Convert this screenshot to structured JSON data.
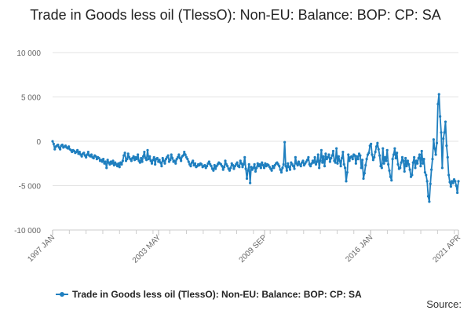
{
  "chart_data": {
    "type": "line",
    "title": "Trade in Goods less oil (TlessO): Non-EU: Balance: BOP: CP: SA",
    "xlabel": "",
    "ylabel": "",
    "ylim": [
      -10000,
      10000
    ],
    "yticks": [
      10000,
      5000,
      0,
      -5000,
      -10000
    ],
    "ytick_labels": [
      "10 000",
      "5 000",
      "0",
      "-5 000",
      "-10 000"
    ],
    "xticks": [
      "1997 JAN",
      "2003 MAY",
      "2009 SEP",
      "2016 JAN",
      "2021 APR"
    ],
    "x_range": [
      "1997-01",
      "2021-04"
    ],
    "frequency": "monthly",
    "grid": true,
    "legend_position": "bottom",
    "series": [
      {
        "name": "Trade in Goods less oil (TlessO): Non-EU: Balance: BOP: CP: SA",
        "color": "#1f7fbf",
        "values": [
          0,
          -300,
          -900,
          -600,
          -500,
          -400,
          -700,
          -900,
          -500,
          -400,
          -700,
          -600,
          -500,
          -700,
          -800,
          -600,
          -900,
          -1000,
          -1200,
          -1000,
          -1100,
          -1300,
          -1200,
          -1000,
          -1400,
          -1200,
          -1500,
          -1700,
          -1400,
          -1300,
          -1600,
          -1800,
          -1500,
          -1200,
          -1600,
          -1700,
          -1500,
          -1800,
          -1900,
          -1600,
          -1700,
          -2000,
          -1800,
          -1900,
          -2200,
          -2100,
          -2300,
          -2000,
          -2500,
          -2300,
          -3000,
          -2100,
          -2400,
          -2600,
          -2300,
          -2500,
          -2200,
          -2700,
          -2400,
          -2600,
          -2800,
          -2500,
          -2900,
          -2400,
          -2600,
          -2200,
          -1600,
          -1300,
          -2200,
          -2000,
          -1400,
          -1800,
          -2000,
          -2200,
          -1900,
          -1700,
          -2100,
          -1800,
          -2000,
          -1500,
          -2200,
          -2400,
          -1900,
          -2300,
          -1700,
          -1200,
          -1900,
          -2100,
          -1000,
          -2000,
          -1700,
          -2200,
          -2500,
          -2100,
          -1800,
          -2600,
          -2000,
          -1900,
          -2300,
          -2100,
          -2400,
          -2800,
          -1900,
          -2200,
          -2500,
          -2000,
          -1800,
          -1600,
          -2300,
          -2100,
          -1500,
          -1900,
          -2300,
          -2200,
          -2500,
          -2000,
          -1800,
          -1500,
          -1900,
          -2200,
          -1700,
          -1600,
          -1200,
          -1500,
          -1800,
          -2000,
          -2300,
          -2600,
          -2800,
          -2400,
          -2200,
          -2700,
          -2500,
          -2900,
          -2800,
          -2600,
          -2700,
          -2500,
          -2600,
          -2900,
          -2800,
          -2700,
          -3000,
          -2800,
          -2500,
          -2300,
          -2600,
          -2800,
          -3100,
          -3300,
          -2700,
          -3100,
          -2800,
          -2600,
          -2400,
          -2500,
          -2600,
          -2800,
          -3200,
          -2900,
          -2200,
          -2600,
          -2800,
          -3100,
          -3300,
          -3000,
          -2500,
          -2700,
          -3100,
          -2800,
          -2600,
          -2400,
          -2800,
          -2900,
          -2200,
          -2500,
          -2900,
          -2600,
          -1800,
          -3100,
          -4200,
          -3300,
          -2600,
          -4700,
          -2900,
          -3200,
          -3000,
          -2600,
          -3400,
          -3000,
          -2500,
          -2800,
          -2600,
          -3000,
          -2400,
          -2700,
          -3000,
          -2500,
          -2800,
          -2600,
          -2700,
          -2900,
          -3100,
          -3300,
          -2800,
          -3000,
          -2700,
          -2500,
          -2400,
          -2600,
          -2800,
          -3200,
          -3500,
          -3000,
          -2600,
          -100,
          -2800,
          -3300,
          -2500,
          -2900,
          -3200,
          -2400,
          -2600,
          -2800,
          -3100,
          -1800,
          -2500,
          -2700,
          -2300,
          -2600,
          -2800,
          -2400,
          -2200,
          -2700,
          -2500,
          -2300,
          -2100,
          -1800,
          -2600,
          -2800,
          -2500,
          -2200,
          -2400,
          -1800,
          -2600,
          -2300,
          -1500,
          -3000,
          -2200,
          -1000,
          -2400,
          -1700,
          -2800,
          -1400,
          -2000,
          -1800,
          -1500,
          -2300,
          -1900,
          -1600,
          -1100,
          -2200,
          -2400,
          -800,
          -2500,
          -1700,
          -2200,
          -2800,
          -1900,
          -1200,
          -2600,
          -3000,
          -4500,
          -3500,
          -1500,
          -2200,
          -1800,
          -1700,
          -2000,
          -1500,
          -1600,
          -2500,
          -1700,
          -2000,
          -1400,
          -1600,
          -3000,
          -2100,
          -4200,
          -3600,
          -2700,
          -2000,
          -1500,
          -1300,
          -500,
          -300,
          -1500,
          -2100,
          -1800,
          -1200,
          -600,
          -200,
          -900,
          -1600,
          -2800,
          -3000,
          -800,
          -2500,
          -1800,
          -2200,
          -1000,
          -2600,
          -3300,
          -4000,
          -4400,
          -2000,
          -1500,
          -800,
          -1900,
          -1300,
          -2600,
          -3100,
          -3000,
          -2400,
          -1800,
          -2200,
          -3400,
          -1900,
          -2800,
          -2200,
          -2600,
          -3200,
          -4000,
          -3800,
          -2400,
          -1800,
          -3000,
          -2200,
          -2500,
          -1900,
          -1500,
          -2800,
          -1100,
          -2500,
          -2000,
          -3500,
          -3800,
          -4500,
          -6200,
          -6800,
          -4800,
          -3200,
          -2000,
          200,
          -800,
          -1500,
          -200,
          4200,
          5300,
          2800,
          1000,
          -3000,
          300,
          1000,
          2200,
          -500,
          -1800,
          -3800,
          -4600,
          -5100,
          -4500,
          -4700,
          -4300,
          -4500,
          -5000,
          -5800,
          -4500
        ]
      }
    ],
    "source_label": "Source:"
  }
}
